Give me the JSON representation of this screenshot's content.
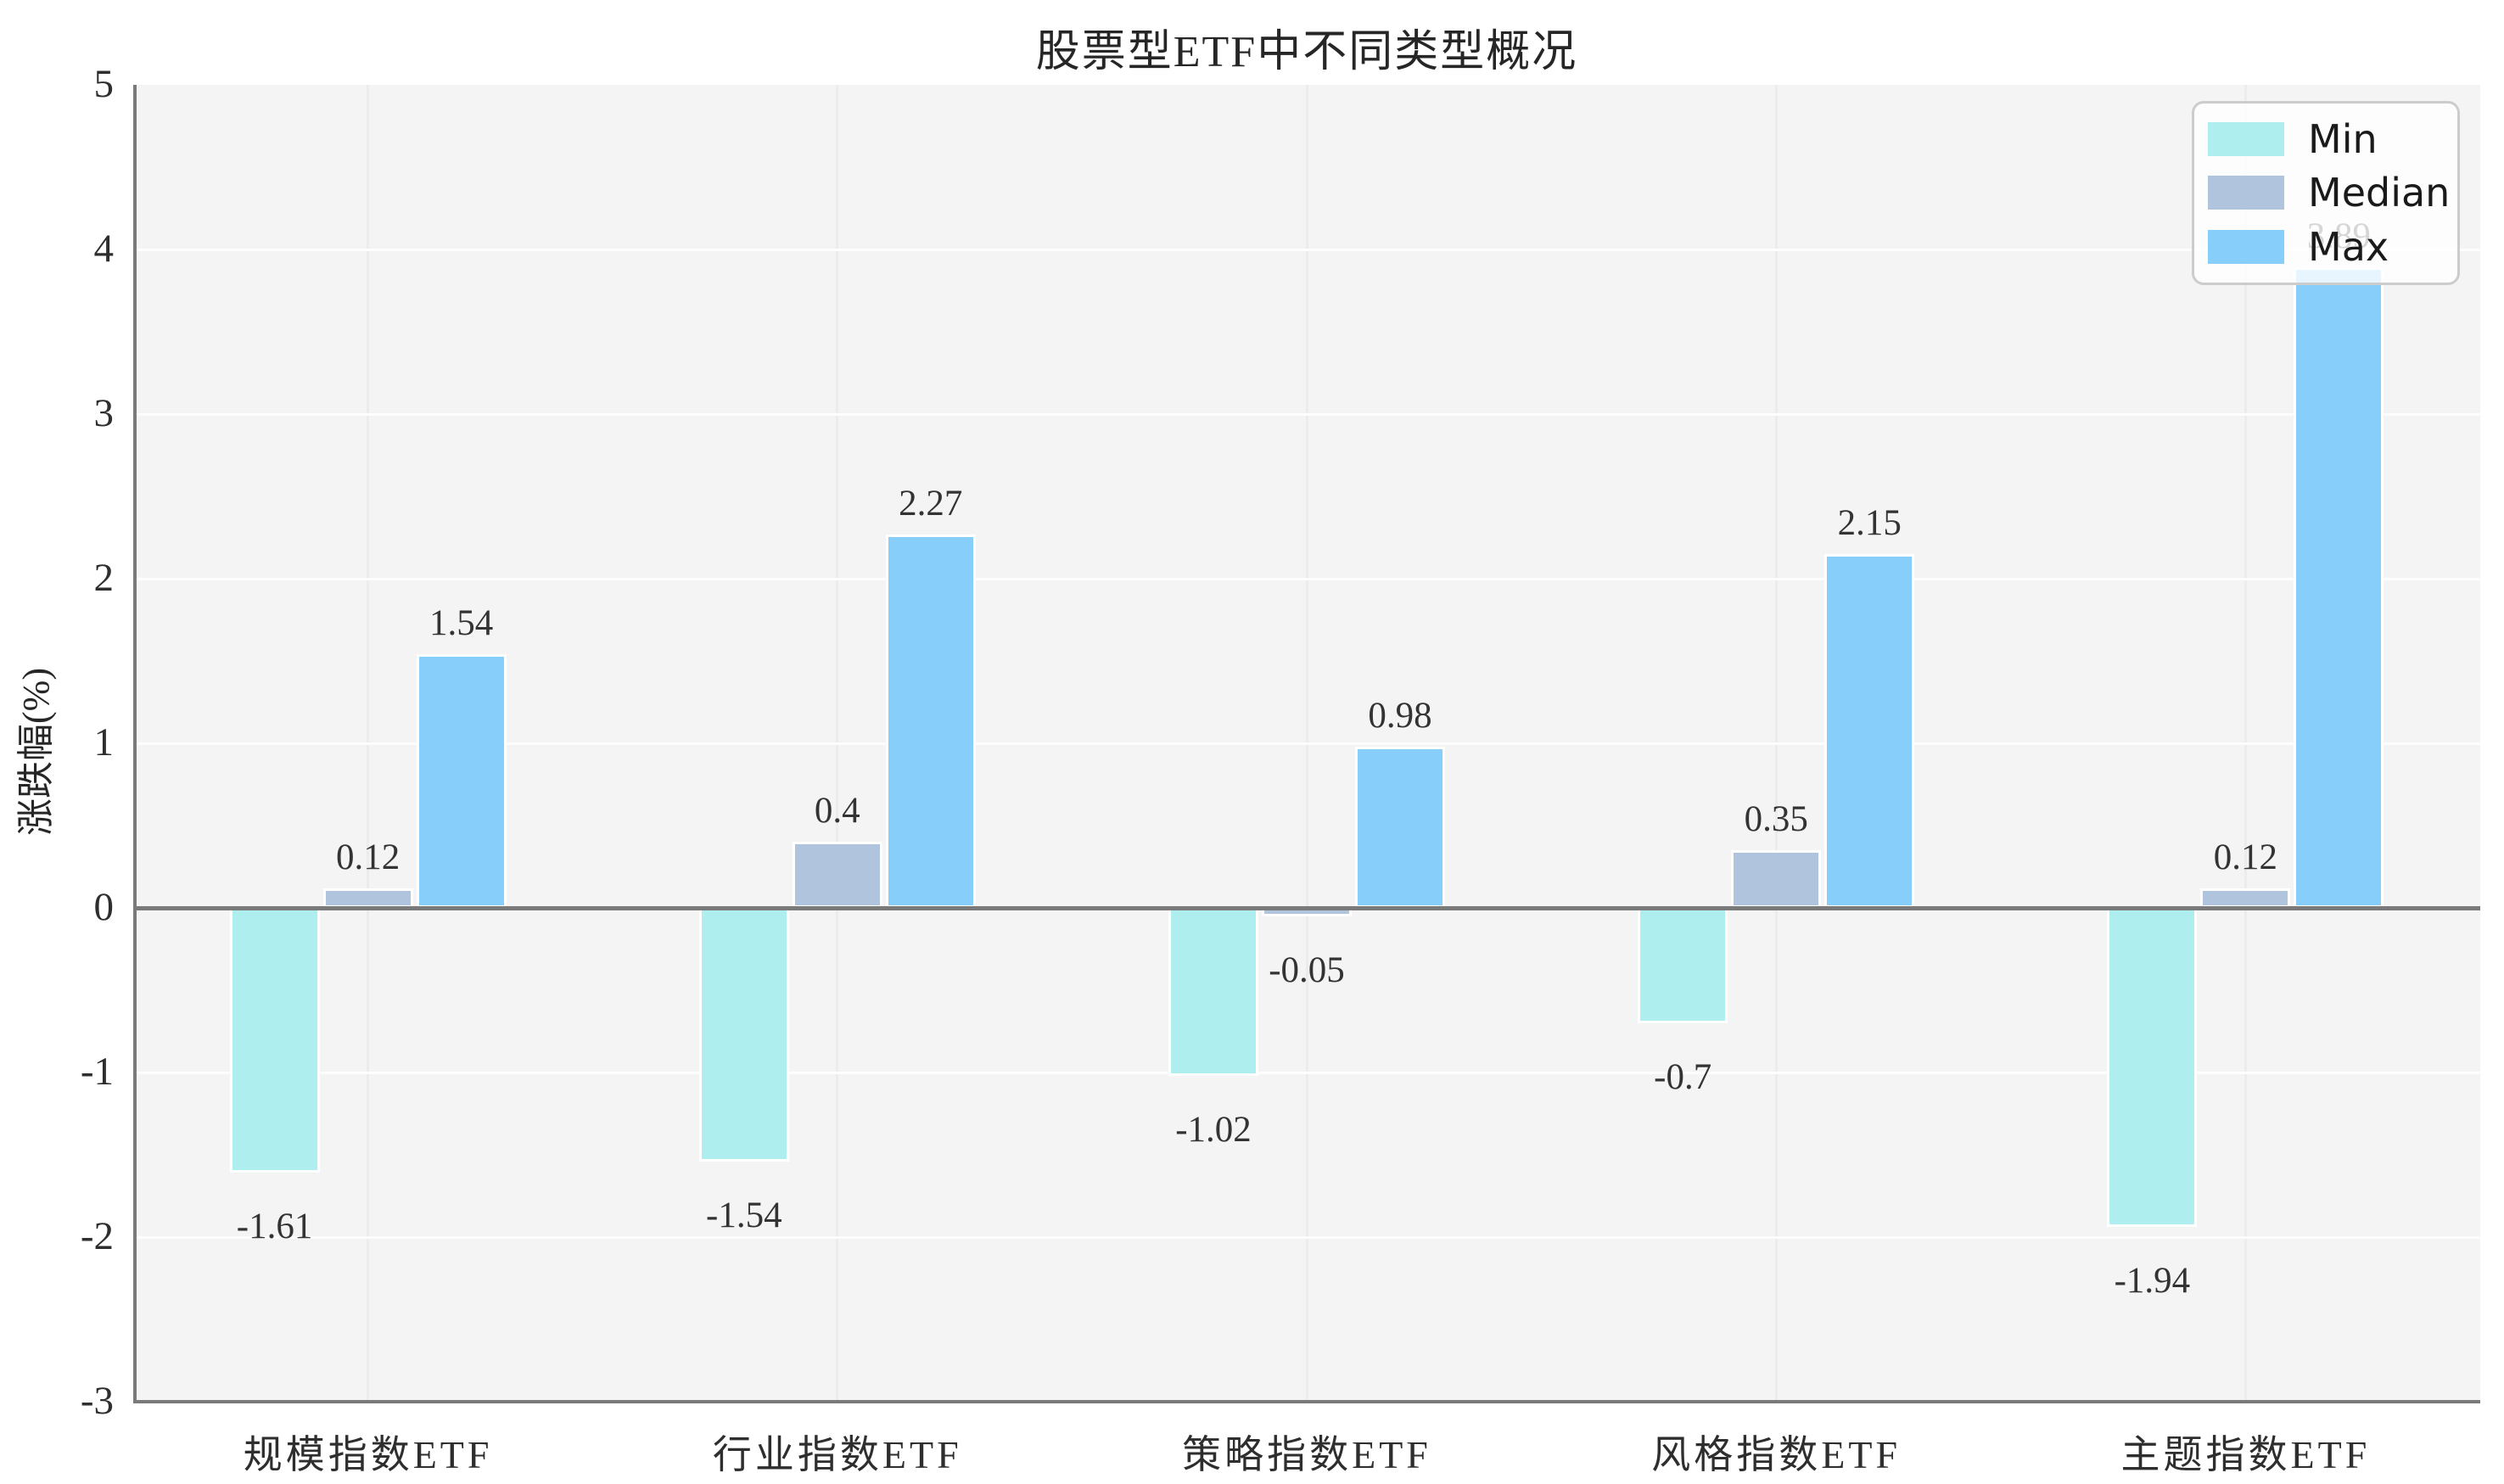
{
  "title": "股票型ETF中不同类型概况",
  "y_axis": {
    "label": "涨跌幅(%)",
    "ticks": [
      5,
      4,
      3,
      2,
      1,
      0,
      -1,
      -2,
      -3
    ]
  },
  "x_axis": {
    "categories": [
      "规模指数ETF",
      "行业指数ETF",
      "策略指数ETF",
      "风格指数ETF",
      "主题指数ETF"
    ]
  },
  "legend": {
    "items": [
      "Min",
      "Median",
      "Max"
    ]
  },
  "chart_data": {
    "type": "bar",
    "title": "股票型ETF中不同类型概况",
    "categories": [
      "规模指数ETF",
      "行业指数ETF",
      "策略指数ETF",
      "风格指数ETF",
      "主题指数ETF"
    ],
    "series": [
      {
        "name": "Min",
        "color": "#AFEEEE",
        "values": [
          -1.61,
          -1.54,
          -1.02,
          -0.7,
          -1.94
        ]
      },
      {
        "name": "Median",
        "color": "#B0C4DE",
        "values": [
          0.12,
          0.4,
          -0.05,
          0.35,
          0.12
        ]
      },
      {
        "name": "Max",
        "color": "#87CEFA",
        "values": [
          1.54,
          2.27,
          0.98,
          2.15,
          3.89
        ]
      }
    ],
    "xlabel": "",
    "ylabel": "涨跌幅(%)",
    "ylim": [
      -3,
      5
    ],
    "yticks": [
      5,
      4,
      3,
      2,
      1,
      0,
      -1,
      -2,
      -3
    ],
    "grid": true,
    "bar_labels": true,
    "legend_position": "top-right"
  },
  "style": {
    "plot_background": "#f4f4f4",
    "figure_background": "#ffffff",
    "grid_horizontal": "#fdfdfd",
    "grid_vertical": "#ececec",
    "spine_color": "#7a7a7a",
    "zero_line_color": "#7a7a7a",
    "text_color": "#2e2e2e",
    "legend_border": "#cccccc",
    "bar_edge": "#ffffff"
  }
}
